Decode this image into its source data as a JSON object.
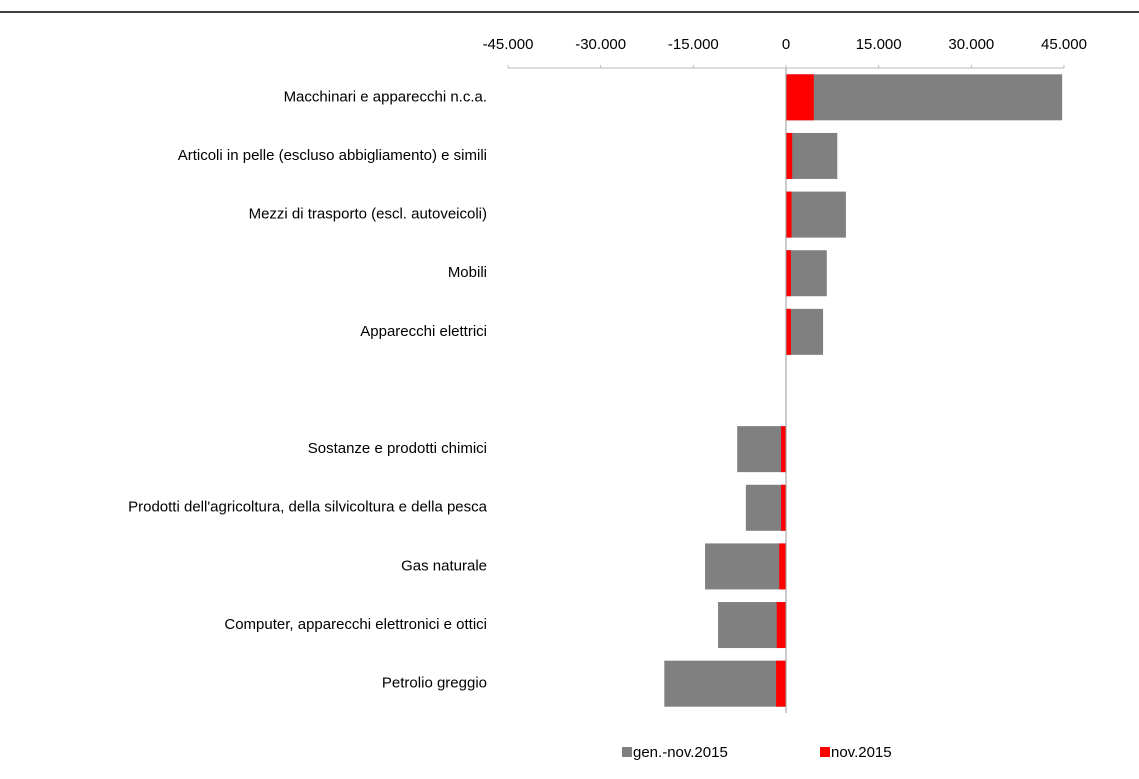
{
  "chart_data": {
    "type": "bar",
    "orientation": "horizontal",
    "categories": [
      "Macchinari e apparecchi n.c.a.",
      "Articoli in pelle (escluso abbigliamento) e simili",
      "Mezzi di trasporto (escl. autoveicoli)",
      "Mobili",
      "Apparecchi elettrici",
      null,
      "Sostanze e prodotti chimici",
      "Prodotti dell'agricoltura, della silvicoltura e della pesca",
      "Gas naturale",
      "Computer, apparecchi elettronici e ottici",
      "Petrolio greggio"
    ],
    "series": [
      {
        "name": "gen.-nov.2015",
        "color": "#808080",
        "values": [
          44700,
          8300,
          9700,
          6600,
          6000,
          null,
          -7900,
          -6500,
          -13100,
          -11000,
          -19700
        ]
      },
      {
        "name": "nov.2015",
        "color": "#ff0000",
        "values": [
          4500,
          1000,
          900,
          800,
          800,
          null,
          -800,
          -800,
          -1100,
          -1500,
          -1600
        ]
      }
    ],
    "xlim": [
      -45000,
      45000
    ],
    "xticks": [
      {
        "value": -45000,
        "label": "-45.000"
      },
      {
        "value": -30000,
        "label": "-30.000"
      },
      {
        "value": -15000,
        "label": "-15.000"
      },
      0,
      {
        "value": 15000,
        "label": "15.000"
      },
      {
        "value": 30000,
        "label": "30.000"
      },
      {
        "value": 45000,
        "label": "45.000"
      }
    ],
    "legend": "bottom"
  }
}
